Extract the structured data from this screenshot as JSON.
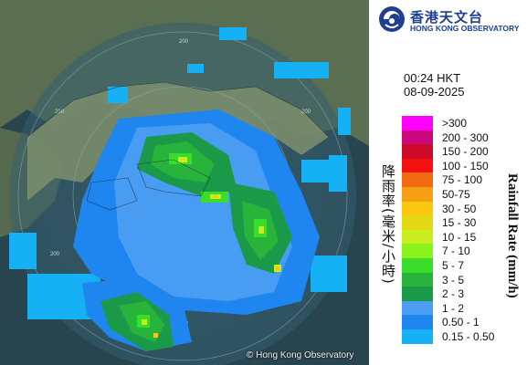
{
  "map": {
    "copyright": "© Hong Kong Observatory",
    "range_labels": [
      "200",
      "200",
      "200",
      "200",
      "200",
      "200"
    ]
  },
  "logo": {
    "chinese": "香港天文台",
    "english": "HONG KONG OBSERVATORY",
    "icon": "hko-logo-icon"
  },
  "timestamp": {
    "time": "00:24 HKT",
    "date": "08-09-2025"
  },
  "legend": {
    "title_cn": "降雨率(毫米/小時)",
    "title_en": "Rainfall Rate (mm/h)",
    "items": [
      {
        "label": ">300",
        "color": "#ff00ff"
      },
      {
        "label": "200 - 300",
        "color": "#c8087c"
      },
      {
        "label": "150 - 200",
        "color": "#ce0a2a"
      },
      {
        "label": "100 - 150",
        "color": "#f31010"
      },
      {
        "label": "75 - 100",
        "color": "#f26a12"
      },
      {
        "label": "50-75",
        "color": "#f4a012"
      },
      {
        "label": "30 - 50",
        "color": "#fcc80f"
      },
      {
        "label": "15 - 30",
        "color": "#e5d815"
      },
      {
        "label": "10 - 15",
        "color": "#c8ee1f"
      },
      {
        "label": "7 - 10",
        "color": "#8af21d"
      },
      {
        "label": "5 - 7",
        "color": "#3ade2a"
      },
      {
        "label": "3 - 5",
        "color": "#28b43a"
      },
      {
        "label": "2 - 3",
        "color": "#1a9a48"
      },
      {
        "label": "1 - 2",
        "color": "#4c9ef2"
      },
      {
        "label": "0.50 - 1",
        "color": "#1e86ee"
      },
      {
        "label": "0.15 - 0.50",
        "color": "#16b0f4"
      }
    ]
  }
}
